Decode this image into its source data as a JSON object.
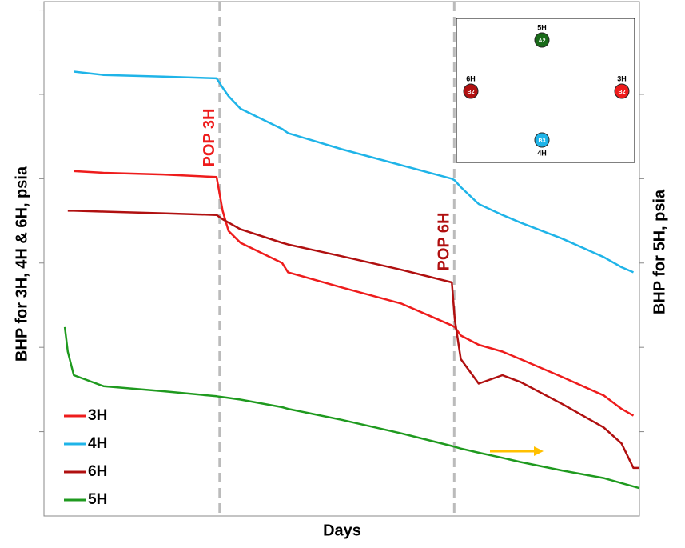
{
  "chart_data": {
    "type": "line",
    "xlabel": "Days",
    "ylabel": "BHP for 3H, 4H & 6H, psia",
    "y2label": "BHP for 5H, psia",
    "x": [
      3.5,
      4,
      5,
      10,
      20,
      29,
      30,
      31,
      33,
      40,
      41,
      50,
      60,
      68.5,
      69,
      70,
      73,
      77,
      80,
      87,
      94,
      97,
      99,
      100
    ],
    "xlim": [
      0,
      100
    ],
    "ylim": [
      0,
      6.1
    ],
    "yticks": [
      1,
      2,
      3,
      4,
      5,
      6
    ],
    "y2lim": [
      0,
      6.1
    ],
    "y2ticks": [
      1,
      2,
      3,
      4,
      5
    ],
    "legend": "lower left",
    "series": [
      {
        "name": "3H",
        "color": "#ee1c1c",
        "values": [
          null,
          null,
          4.09,
          4.07,
          4.05,
          4.02,
          3.62,
          3.38,
          3.24,
          3.0,
          2.89,
          2.71,
          2.52,
          2.26,
          2.24,
          2.14,
          2.03,
          1.95,
          1.86,
          1.65,
          1.43,
          1.27,
          1.19,
          null
        ]
      },
      {
        "name": "4H",
        "color": "#1fb4e8",
        "values": [
          null,
          null,
          5.27,
          5.23,
          5.21,
          5.19,
          5.08,
          4.98,
          4.83,
          4.59,
          4.54,
          4.35,
          4.16,
          4.0,
          3.98,
          3.9,
          3.7,
          3.57,
          3.48,
          3.29,
          3.07,
          2.95,
          2.89,
          null
        ]
      },
      {
        "name": "6H",
        "color": "#b01010",
        "values": [
          null,
          3.62,
          3.62,
          3.61,
          3.59,
          3.57,
          3.52,
          3.48,
          3.4,
          3.24,
          3.22,
          3.08,
          2.92,
          2.77,
          2.33,
          1.86,
          1.57,
          1.67,
          1.59,
          1.33,
          1.05,
          0.86,
          0.57,
          0.57
        ]
      },
      {
        "name": "5H",
        "color": "#1f9a1f",
        "axis": "y2",
        "values": [
          2.24,
          1.95,
          1.67,
          1.54,
          1.48,
          1.42,
          1.41,
          1.4,
          1.38,
          1.29,
          1.27,
          1.14,
          0.98,
          0.83,
          0.82,
          0.8,
          0.75,
          0.69,
          0.64,
          0.54,
          0.45,
          0.39,
          0.35,
          0.33
        ]
      }
    ],
    "events": [
      {
        "x": 29.5,
        "label": "POP 3H",
        "color": "#ee1c1c"
      },
      {
        "x": 68.9,
        "label": "POP 6H",
        "color": "#b01010"
      }
    ],
    "inset": {
      "wells": [
        {
          "name": "5H",
          "code": "A2",
          "color": "#1a6b1a"
        },
        {
          "name": "6H",
          "code": "B2",
          "color": "#b01010"
        },
        {
          "name": "3H",
          "code": "B2",
          "color": "#ee1c1c"
        },
        {
          "name": "4H",
          "code": "B3",
          "color": "#1fb4e8"
        }
      ]
    }
  }
}
